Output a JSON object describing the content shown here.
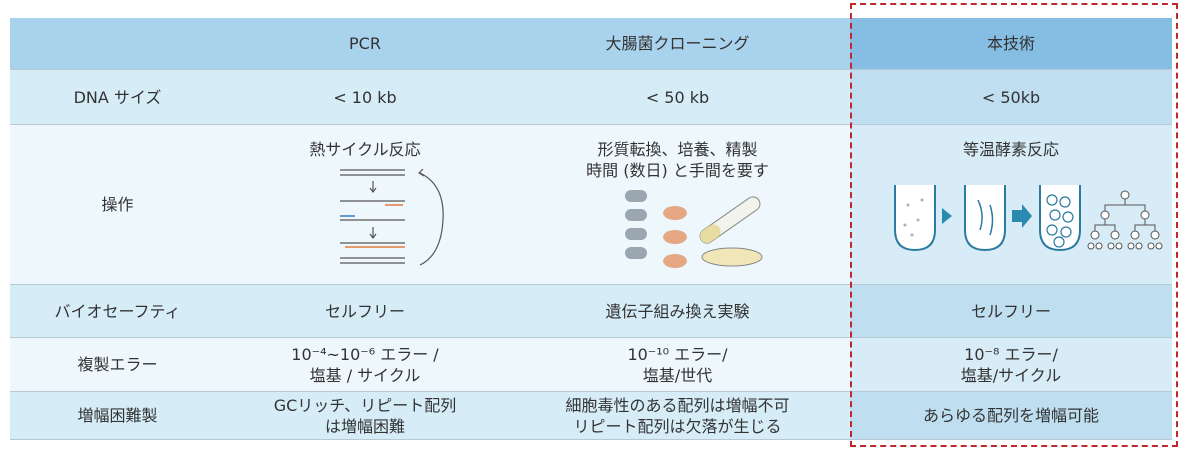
{
  "table": {
    "header": [
      "PCR",
      "大腸菌クローニング",
      "本技術"
    ],
    "rows": [
      {
        "label": "DNA サイズ",
        "cells": [
          [
            "< 10 kb"
          ],
          [
            "< 50 kb"
          ],
          [
            "< 50kb"
          ]
        ]
      },
      {
        "label": "操作",
        "cells": [
          [
            "熱サイクル反応"
          ],
          [
            "形質転換、培養、精製",
            "時間 (数日) と手間を要す"
          ],
          [
            "等温酵素反応"
          ]
        ]
      },
      {
        "label": "バイオセーフティ",
        "cells": [
          [
            "セルフリー"
          ],
          [
            "遺伝子組み換え実験"
          ],
          [
            "セルフリー"
          ]
        ]
      },
      {
        "label": "複製エラー",
        "cells": [
          [
            "10⁻⁴~10⁻⁶ エラー /",
            "塩基 / サイクル"
          ],
          [
            "10⁻¹⁰ エラー/",
            "塩基/世代"
          ],
          [
            "10⁻⁸ エラー/",
            "塩基/サイクル"
          ]
        ]
      },
      {
        "label": "増幅困難製",
        "cells": [
          [
            "GCリッチ、リピート配列",
            "は増幅困難"
          ],
          [
            "細胞毒性のある配列は増幅不可",
            "リピート配列は欠落が生じる"
          ],
          [
            "あらゆる配列を増幅可能"
          ]
        ]
      }
    ]
  }
}
